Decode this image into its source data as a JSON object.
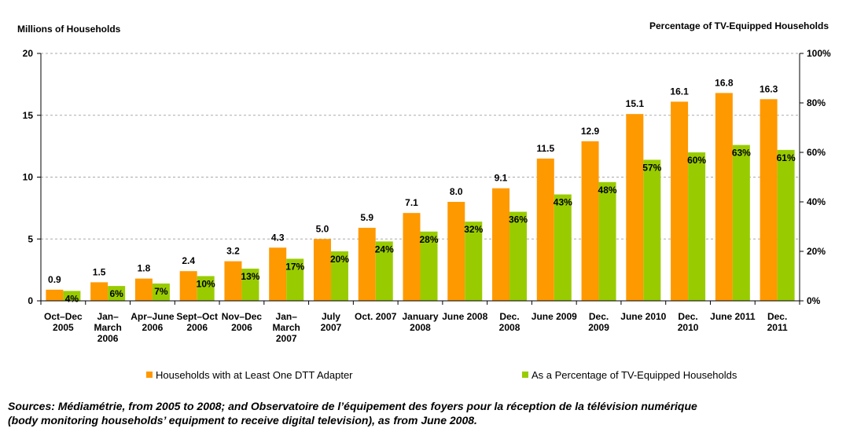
{
  "chart_data": {
    "type": "bar",
    "left_axis_label": "Millions of Households",
    "right_axis_label": "Percentage of TV-Equipped Households",
    "categories": [
      [
        "Oct–Dec",
        "2005"
      ],
      [
        "Jan–",
        "March",
        "2006"
      ],
      [
        "Apr–June",
        "2006"
      ],
      [
        "Sept–Oct",
        "2006"
      ],
      [
        "Nov–Dec",
        "2006"
      ],
      [
        "Jan–",
        "March",
        "2007"
      ],
      [
        "July",
        "2007"
      ],
      [
        "Oct. 2007"
      ],
      [
        "January",
        "2008"
      ],
      [
        "June 2008"
      ],
      [
        "Dec.",
        "2008"
      ],
      [
        "June 2009"
      ],
      [
        "Dec.",
        "2009"
      ],
      [
        "June 2010"
      ],
      [
        "Dec.",
        "2010"
      ],
      [
        "June 2011"
      ],
      [
        "Dec.",
        "2011"
      ]
    ],
    "series": [
      {
        "name": "Households with at Least One DTT Adapter",
        "axis": "left",
        "color": "#FF9900",
        "values": [
          0.9,
          1.5,
          1.8,
          2.4,
          3.2,
          4.3,
          5.0,
          5.9,
          7.1,
          8.0,
          9.1,
          11.5,
          12.9,
          15.1,
          16.1,
          16.8,
          16.3
        ],
        "labels": [
          "0.9",
          "1.5",
          "1.8",
          "2.4",
          "3.2",
          "4.3",
          "5.0",
          "5.9",
          "7.1",
          "8.0",
          "9.1",
          "11.5",
          "12.9",
          "15.1",
          "16.1",
          "16.8",
          "16.3"
        ]
      },
      {
        "name": "As a Percentage of TV-Equipped Households",
        "axis": "right",
        "color": "#99CC00",
        "values": [
          4,
          6,
          7,
          10,
          13,
          17,
          20,
          24,
          28,
          32,
          36,
          43,
          48,
          57,
          60,
          63,
          61
        ],
        "labels": [
          "4%",
          "6%",
          "7%",
          "10%",
          "13%",
          "17%",
          "20%",
          "24%",
          "28%",
          "32%",
          "36%",
          "43%",
          "48%",
          "57%",
          "60%",
          "63%",
          "61%"
        ]
      }
    ],
    "left_ylim": [
      0,
      20
    ],
    "left_ticks": [
      "0",
      "5",
      "10",
      "15",
      "20"
    ],
    "right_ylim": [
      0,
      100
    ],
    "right_ticks": [
      "0%",
      "20%",
      "40%",
      "60%",
      "80%",
      "100%"
    ],
    "grid": "horizontal dashed",
    "legend_position": "bottom"
  },
  "source_note": {
    "line1": "Sources: Médiamétrie, from 2005 to 2008; and Observatoire de l’équipement des foyers pour la réception de la télévision numérique",
    "line2": "(body monitoring households’ equipment to receive digital television), as from June 2008."
  }
}
